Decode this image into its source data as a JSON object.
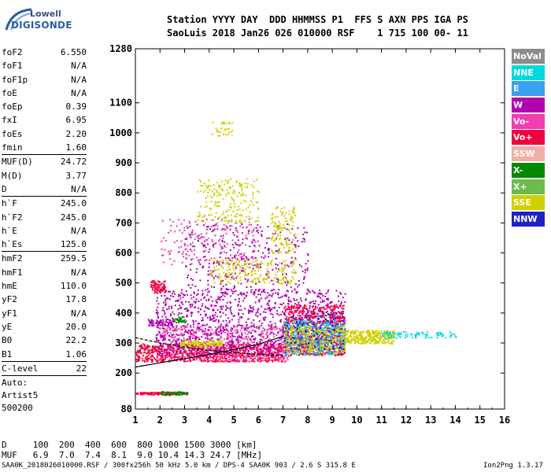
{
  "logo": {
    "line1": "Lowell",
    "line2": "DIGISONDE"
  },
  "header": {
    "row1": "Station YYYY DAY  DDD HHMMSS P1  FFS S AXN PPS IGA PS",
    "row2": "SaoLuis 2018 Jan26 026 010000 RSF    1 715 100 00- 11"
  },
  "params": {
    "group1": [
      {
        "k": "foF2",
        "v": "6.550"
      },
      {
        "k": "foF1",
        "v": "N/A"
      },
      {
        "k": "foF1p",
        "v": "N/A"
      },
      {
        "k": "foE",
        "v": "N/A"
      },
      {
        "k": "foEp",
        "v": "0.39"
      },
      {
        "k": "fxI",
        "v": "6.95"
      },
      {
        "k": "foEs",
        "v": "2.20"
      },
      {
        "k": "fmin",
        "v": "1.60"
      }
    ],
    "group2": [
      {
        "k": "MUF(D)",
        "v": "24.72"
      },
      {
        "k": "M(D)",
        "v": "3.77"
      },
      {
        "k": "D",
        "v": "N/A"
      }
    ],
    "group3": [
      {
        "k": "h`F",
        "v": "245.0"
      },
      {
        "k": "h`F2",
        "v": "245.0"
      },
      {
        "k": "h`E",
        "v": "N/A"
      },
      {
        "k": "h`Es",
        "v": "125.0"
      }
    ],
    "group4": [
      {
        "k": "hmF2",
        "v": "259.5"
      },
      {
        "k": "hmF1",
        "v": "N/A"
      },
      {
        "k": "hmE",
        "v": "110.0"
      },
      {
        "k": "yF2",
        "v": "17.8"
      },
      {
        "k": "yF1",
        "v": "N/A"
      },
      {
        "k": "yE",
        "v": "20.0"
      },
      {
        "k": "B0",
        "v": "22.2"
      },
      {
        "k": "B1",
        "v": "1.06"
      }
    ],
    "clevel": {
      "k": "C-level",
      "v": "22"
    },
    "auto": [
      "Auto:",
      "Artist5",
      "500200"
    ]
  },
  "legend": [
    {
      "name": "NoVal",
      "color": "#8c8c8c"
    },
    {
      "name": "NNE",
      "color": "#00d8e0"
    },
    {
      "name": "E",
      "color": "#3aa0f0"
    },
    {
      "name": "W",
      "color": "#b000b0"
    },
    {
      "name": "Vo-",
      "color": "#ee3eb0"
    },
    {
      "name": "Vo+",
      "color": "#f0003c"
    },
    {
      "name": "SSW",
      "color": "#f0b0a8"
    },
    {
      "name": "X-",
      "color": "#008a00"
    },
    {
      "name": "X+",
      "color": "#6cbc4c"
    },
    {
      "name": "SSE",
      "color": "#d0d000"
    },
    {
      "name": "NNW",
      "color": "#2020c8"
    }
  ],
  "bottom": {
    "d_row": "D     100  200  400  600  800 1000 1500 3000 [km]",
    "muf_row": "MUF   6.9  7.0  7.4  8.1  9.0 10.4 14.3 24.7 [MHz]"
  },
  "footer": {
    "left": "SAA0K_2018026010000.RSF / 300fx256h 50 kHz 5.0 km / DPS-4 SAA0K 903 / 2.6 S 315.8 E",
    "right": "Ion2Png 1.3.17"
  },
  "chart_data": {
    "type": "scatter",
    "xlim": [
      1,
      16
    ],
    "ylim": [
      80,
      1280
    ],
    "x_ticks": [
      1,
      2,
      3,
      4,
      5,
      6,
      7,
      8,
      9,
      10,
      11,
      12,
      13,
      14,
      15,
      16
    ],
    "y_ticks": [
      80,
      200,
      300,
      400,
      500,
      600,
      700,
      800,
      900,
      1000,
      1100,
      1280
    ],
    "grid": false,
    "legend_position": "right",
    "profile_curve": [
      [
        1,
        220
      ],
      [
        2,
        234
      ],
      [
        3,
        248
      ],
      [
        4,
        262
      ],
      [
        5,
        278
      ],
      [
        6,
        296
      ],
      [
        7,
        322
      ]
    ],
    "lower_trace": [
      [
        1,
        318
      ],
      [
        2,
        300
      ],
      [
        3,
        286
      ],
      [
        4,
        275
      ],
      [
        5,
        268
      ],
      [
        6,
        262
      ],
      [
        7,
        258
      ]
    ],
    "regions": [
      {
        "series": "Vo+",
        "x": [
          1.0,
          3.1
        ],
        "y": [
          130,
          138
        ],
        "n": 120
      },
      {
        "series": "X-",
        "x": [
          2.0,
          3.1
        ],
        "y": [
          128,
          140
        ],
        "n": 50
      },
      {
        "series": "Vo+",
        "x": [
          1.0,
          7.0
        ],
        "y": [
          240,
          300
        ],
        "n": 900
      },
      {
        "series": "Vo-",
        "x": [
          2.0,
          7.2
        ],
        "y": [
          240,
          360
        ],
        "n": 600
      },
      {
        "series": "W",
        "x": [
          1.8,
          9.5
        ],
        "y": [
          260,
          480
        ],
        "n": 1200
      },
      {
        "series": "Vo+",
        "x": [
          7.0,
          9.5
        ],
        "y": [
          260,
          430
        ],
        "n": 700
      },
      {
        "series": "NNE",
        "x": [
          7.0,
          9.5
        ],
        "y": [
          260,
          380
        ],
        "n": 250
      },
      {
        "series": "E",
        "x": [
          7.0,
          9.5
        ],
        "y": [
          265,
          370
        ],
        "n": 250
      },
      {
        "series": "SSE",
        "x": [
          7.0,
          9.5
        ],
        "y": [
          270,
          360
        ],
        "n": 300
      },
      {
        "series": "NNW",
        "x": [
          7.0,
          9.5
        ],
        "y": [
          280,
          400
        ],
        "n": 120
      },
      {
        "series": "SSE",
        "x": [
          9.5,
          11.5
        ],
        "y": [
          300,
          345
        ],
        "n": 300
      },
      {
        "series": "NNE",
        "x": [
          11.0,
          14.0
        ],
        "y": [
          318,
          340
        ],
        "n": 90
      },
      {
        "series": "W",
        "x": [
          3.0,
          8.0
        ],
        "y": [
          480,
          700
        ],
        "n": 350
      },
      {
        "series": "Vo-",
        "x": [
          2.0,
          6.0
        ],
        "y": [
          560,
          720
        ],
        "n": 150
      },
      {
        "series": "SSE",
        "x": [
          4.0,
          7.5
        ],
        "y": [
          500,
          580
        ],
        "n": 200
      },
      {
        "series": "SSE",
        "x": [
          6.5,
          7.5
        ],
        "y": [
          600,
          760
        ],
        "n": 120
      },
      {
        "series": "SSE",
        "x": [
          3.5,
          6.0
        ],
        "y": [
          700,
          850
        ],
        "n": 200
      },
      {
        "series": "SSE",
        "x": [
          4.0,
          5.0
        ],
        "y": [
          990,
          1040
        ],
        "n": 30
      },
      {
        "series": "Vo+",
        "x": [
          1.6,
          2.2
        ],
        "y": [
          470,
          510
        ],
        "n": 80
      },
      {
        "series": "X-",
        "x": [
          2.5,
          3.0
        ],
        "y": [
          370,
          390
        ],
        "n": 30
      },
      {
        "series": "W",
        "x": [
          1.5,
          2.5
        ],
        "y": [
          360,
          380
        ],
        "n": 60
      },
      {
        "series": "SSE",
        "x": [
          2.8,
          4.5
        ],
        "y": [
          290,
          310
        ],
        "n": 120
      }
    ]
  }
}
